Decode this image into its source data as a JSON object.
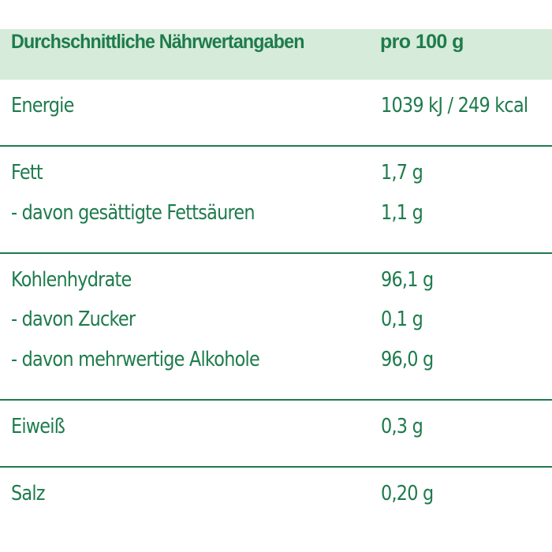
{
  "header": {
    "label": "Durchschnittliche Nährwertangaben",
    "value": "pro 100 g"
  },
  "rows": [
    {
      "label": "Energie",
      "value": "1039 kJ / 249 kcal"
    },
    {
      "label": "Fett",
      "value": "1,7 g"
    },
    {
      "label": "- davon gesättigte Fettsäuren",
      "value": "1,1 g"
    },
    {
      "label": "Kohlenhydrate",
      "value": "96,1 g"
    },
    {
      "label": "- davon Zucker",
      "value": "0,1 g"
    },
    {
      "label": "- davon mehrwertige Alkohole",
      "value": "96,0 g"
    },
    {
      "label": "Eiweiß",
      "value": "0,3 g"
    },
    {
      "label": "Salz",
      "value": "0,20 g"
    }
  ],
  "colors": {
    "text": "#1e7b4c",
    "header_background": "#d6ebd9",
    "divider": "#1e7b4c"
  }
}
